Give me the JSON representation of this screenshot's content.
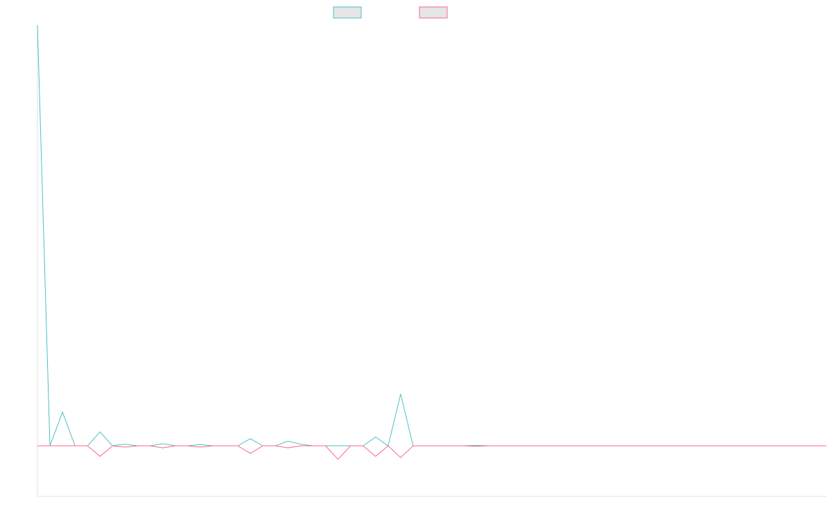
{
  "chart_data": {
    "type": "line",
    "title": "",
    "xlabel": "",
    "ylabel": "",
    "legend_position": "top-center",
    "grid": false,
    "x_count": 64,
    "ylim": [
      -120,
      1000
    ],
    "series": [
      {
        "color": "#4bc0c0",
        "legend_fill": "#e5e5e5",
        "values": [
          1000,
          0,
          80,
          0,
          0,
          33,
          0,
          4,
          0,
          0,
          5,
          0,
          0,
          3,
          0,
          0,
          0,
          17,
          0,
          0,
          11,
          4,
          0,
          0,
          0,
          0,
          0,
          21,
          0,
          123,
          0,
          0,
          0,
          0,
          0,
          1,
          0,
          0,
          0,
          0,
          0,
          0,
          0,
          0,
          0,
          0,
          0,
          0,
          0,
          0,
          0,
          0,
          0,
          0,
          0,
          0,
          0,
          0,
          0,
          0,
          0,
          0,
          0,
          0
        ]
      },
      {
        "color": "#ff6384",
        "legend_fill": "#e5e5e5",
        "values": [
          0,
          0,
          0,
          0,
          0,
          -25,
          0,
          -3,
          0,
          0,
          -5,
          0,
          0,
          -3,
          0,
          0,
          0,
          -18,
          0,
          0,
          -5,
          0,
          0,
          0,
          -32,
          0,
          0,
          -25,
          0,
          -28,
          0,
          0,
          0,
          0,
          0,
          -1,
          0,
          0,
          0,
          0,
          0,
          0,
          0,
          0,
          0,
          0,
          0,
          0,
          0,
          0,
          0,
          0,
          0,
          0,
          0,
          0,
          0,
          0,
          0,
          0,
          0,
          0,
          0,
          0
        ]
      }
    ]
  }
}
